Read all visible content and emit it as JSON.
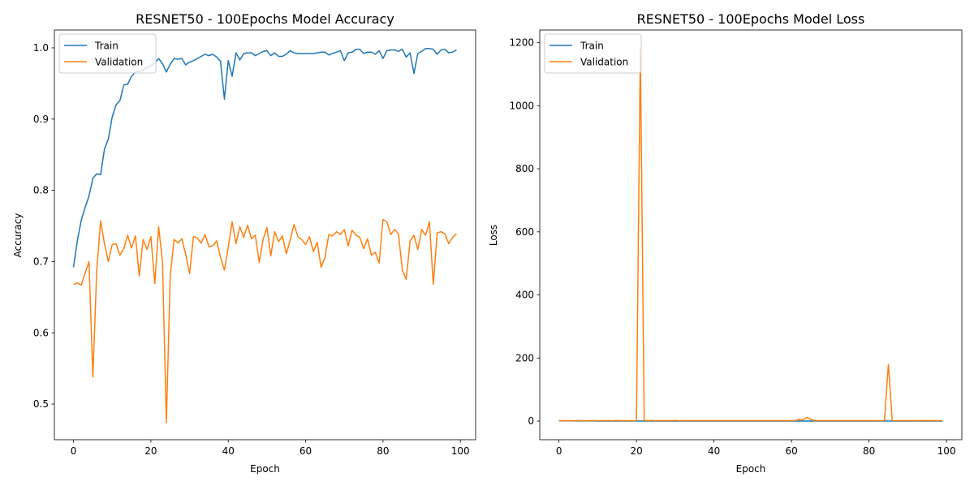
{
  "chart_data": [
    {
      "type": "line",
      "title": "RESNET50 - 100Epochs Model Accuracy",
      "xlabel": "Epoch",
      "ylabel": "Accuracy",
      "xlim": [
        -4.95,
        103.95
      ],
      "ylim": [
        0.45,
        1.025
      ],
      "xticks": [
        0,
        20,
        40,
        60,
        80,
        100
      ],
      "yticks": [
        0.5,
        0.6,
        0.7,
        0.8,
        0.9,
        1.0
      ],
      "tick_decimals": 1,
      "grid": false,
      "legend_position": "upper-left",
      "series": [
        {
          "name": "Train",
          "color": "#1f77b4",
          "values": [
            0.692,
            0.73,
            0.758,
            0.776,
            0.792,
            0.817,
            0.823,
            0.822,
            0.858,
            0.872,
            0.903,
            0.92,
            0.926,
            0.948,
            0.949,
            0.96,
            0.966,
            0.967,
            0.969,
            0.972,
            0.975,
            0.979,
            0.985,
            0.978,
            0.966,
            0.977,
            0.985,
            0.984,
            0.985,
            0.976,
            0.98,
            0.982,
            0.985,
            0.988,
            0.991,
            0.989,
            0.991,
            0.987,
            0.981,
            0.928,
            0.982,
            0.96,
            0.993,
            0.983,
            0.992,
            0.993,
            0.993,
            0.989,
            0.992,
            0.995,
            0.996,
            0.989,
            0.993,
            0.988,
            0.988,
            0.991,
            0.996,
            0.993,
            0.992,
            0.992,
            0.992,
            0.992,
            0.992,
            0.993,
            0.994,
            0.994,
            0.99,
            0.992,
            0.994,
            0.996,
            0.982,
            0.993,
            0.994,
            0.998,
            0.998,
            0.992,
            0.994,
            0.994,
            0.991,
            0.996,
            0.985,
            0.996,
            0.997,
            0.997,
            0.995,
            0.998,
            0.987,
            0.993,
            0.964,
            0.992,
            0.995,
            0.999,
            0.999,
            0.998,
            0.991,
            0.997,
            0.998,
            0.993,
            0.994,
            0.997
          ]
        },
        {
          "name": "Validation",
          "color": "#ff7f0e",
          "values": [
            0.668,
            0.67,
            0.667,
            0.684,
            0.7,
            0.538,
            0.688,
            0.757,
            0.725,
            0.7,
            0.724,
            0.725,
            0.709,
            0.718,
            0.737,
            0.719,
            0.736,
            0.68,
            0.731,
            0.717,
            0.735,
            0.669,
            0.749,
            0.7,
            0.474,
            0.68,
            0.731,
            0.726,
            0.732,
            0.71,
            0.683,
            0.735,
            0.733,
            0.726,
            0.738,
            0.721,
            0.722,
            0.729,
            0.706,
            0.688,
            0.72,
            0.756,
            0.725,
            0.749,
            0.734,
            0.751,
            0.732,
            0.737,
            0.699,
            0.731,
            0.748,
            0.708,
            0.742,
            0.728,
            0.736,
            0.711,
            0.73,
            0.752,
            0.735,
            0.731,
            0.724,
            0.735,
            0.714,
            0.727,
            0.692,
            0.706,
            0.738,
            0.736,
            0.742,
            0.738,
            0.745,
            0.722,
            0.744,
            0.737,
            0.734,
            0.718,
            0.732,
            0.709,
            0.713,
            0.698,
            0.759,
            0.756,
            0.738,
            0.745,
            0.739,
            0.688,
            0.675,
            0.729,
            0.737,
            0.717,
            0.745,
            0.737,
            0.756,
            0.668,
            0.74,
            0.742,
            0.739,
            0.725,
            0.734,
            0.739
          ]
        }
      ]
    },
    {
      "type": "line",
      "title": "RESNET50 - 100Epochs Model Loss",
      "xlabel": "Epoch",
      "ylabel": "Loss",
      "xlim": [
        -4.95,
        103.95
      ],
      "ylim": [
        -59,
        1240
      ],
      "xticks": [
        0,
        20,
        40,
        60,
        80,
        100
      ],
      "yticks": [
        0,
        200,
        400,
        600,
        800,
        1000,
        1200
      ],
      "tick_decimals": 0,
      "grid": false,
      "legend_position": "upper-left",
      "series": [
        {
          "name": "Train",
          "color": "#1f77b4",
          "values": [
            1.0,
            0.9,
            0.8,
            0.7,
            0.6,
            0.5,
            0.5,
            0.5,
            0.4,
            0.4,
            0.3,
            0.3,
            0.3,
            0.2,
            0.2,
            0.2,
            0.1,
            0.1,
            0.1,
            0.1,
            0.1,
            0.1,
            0.1,
            0.1,
            0.1,
            0.1,
            0.1,
            0.1,
            0.1,
            0.1,
            0.1,
            0.1,
            0.1,
            0.1,
            0.1,
            0.1,
            0.1,
            0.1,
            0.1,
            0.2,
            0.1,
            0.1,
            0.1,
            0.1,
            0.1,
            0.1,
            0.1,
            0.1,
            0.1,
            0.1,
            0.1,
            0.1,
            0.1,
            0.1,
            0.1,
            0.1,
            0.1,
            0.1,
            0.1,
            0.1,
            0.1,
            0.1,
            0.1,
            0.1,
            0.1,
            0.1,
            0.1,
            0.1,
            0.1,
            0.1,
            0.1,
            0.1,
            0.1,
            0.1,
            0.1,
            0.1,
            0.1,
            0.1,
            0.1,
            0.1,
            0.1,
            0.1,
            0.1,
            0.1,
            0.1,
            0.1,
            0.1,
            0.1,
            0.1,
            0.1,
            0.1,
            0.1,
            0.1,
            0.1,
            0.1,
            0.1,
            0.1,
            0.1,
            0.1,
            0.1
          ]
        },
        {
          "name": "Validation",
          "color": "#ff7f0e",
          "values": [
            1.5,
            1.4,
            1.6,
            1.3,
            1.2,
            1.8,
            1.3,
            1.2,
            1.4,
            1.3,
            1.2,
            1.5,
            1.3,
            1.4,
            1.2,
            2.0,
            1.3,
            1.4,
            1.3,
            1.2,
            1.5,
            1180,
            1.4,
            1.5,
            2.0,
            1.3,
            1.4,
            1.3,
            1.3,
            1.4,
            2.5,
            1.3,
            1.4,
            1.3,
            1.5,
            1.4,
            1.4,
            1.3,
            1.4,
            1.5,
            1.4,
            1.3,
            1.4,
            1.3,
            1.5,
            1.4,
            1.4,
            1.6,
            1.5,
            1.4,
            1.4,
            1.5,
            1.4,
            1.4,
            1.4,
            1.5,
            1.4,
            1.4,
            1.5,
            1.4,
            1.5,
            1.4,
            5.0,
            4.0,
            12.0,
            5.0,
            1.5,
            1.4,
            1.4,
            1.4,
            1.4,
            1.4,
            1.4,
            1.4,
            1.4,
            1.5,
            1.4,
            1.5,
            1.4,
            1.4,
            1.4,
            1.4,
            1.5,
            1.4,
            1.4,
            180,
            1.5,
            1.4,
            1.4,
            1.5,
            1.4,
            1.4,
            1.5,
            1.8,
            1.4,
            1.4,
            1.5,
            1.4,
            1.4,
            1.4
          ]
        }
      ]
    }
  ]
}
